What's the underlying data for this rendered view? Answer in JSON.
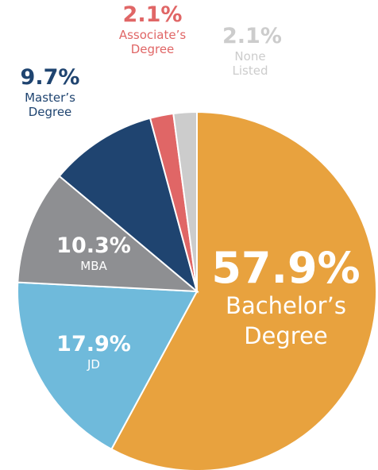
{
  "chart_data": {
    "type": "pie",
    "categories": [
      "Bachelor’s Degree",
      "JD",
      "MBA",
      "Master’s Degree",
      "Associate’s Degree",
      "None Listed"
    ],
    "values": [
      57.9,
      17.9,
      10.3,
      9.7,
      2.1,
      2.1
    ],
    "value_labels": [
      "57.9%",
      "17.9%",
      "10.3%",
      "9.7%",
      "2.1%",
      "2.1%"
    ],
    "colors": [
      "#e8a23e",
      "#6fbadb",
      "#8e8f92",
      "#1f4470",
      "#e06666",
      "#cccccc"
    ]
  }
}
